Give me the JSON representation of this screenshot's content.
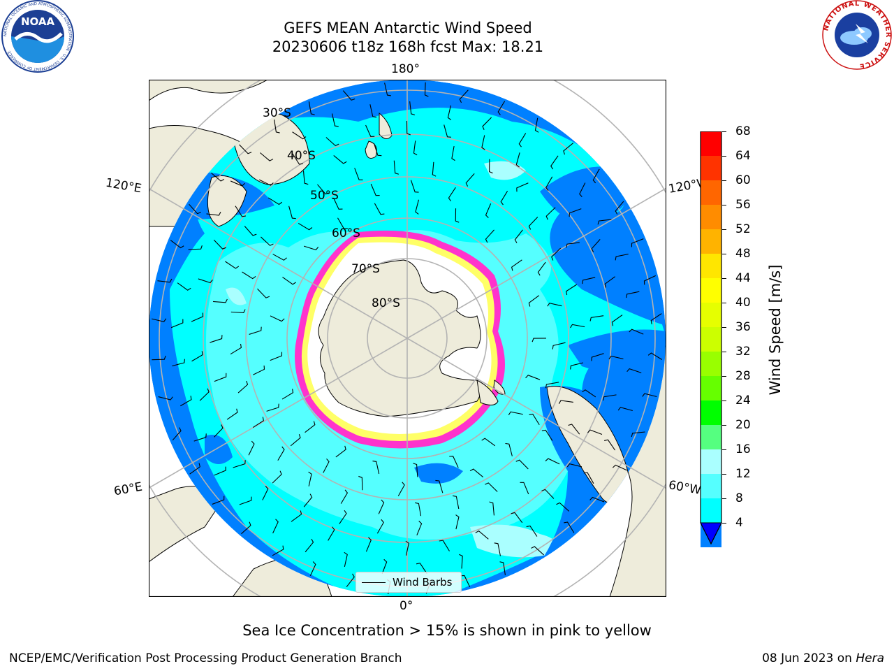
{
  "title": {
    "line1": "GEFS MEAN Antarctic Wind Speed",
    "line2": "20230606 t18z 168h fcst   Max: 18.21"
  },
  "logos": {
    "noaa_text": "NOAA",
    "noaa_ring_text": "NATIONAL OCEANIC AND ATMOSPHERIC ADMINISTRATION · U.S. DEPARTMENT OF COMMERCE",
    "nws_ring_text": "NATIONAL WEATHER SERVICE"
  },
  "map": {
    "projection": "south polar stereographic",
    "longitude_labels": {
      "top": "180°",
      "bottom": "0°",
      "left_upper": "120°E",
      "left_lower": "60°E",
      "right_upper": "120°W",
      "right_lower": "60°W"
    },
    "latitude_labels": [
      "30°S",
      "40°S",
      "50°S",
      "60°S",
      "70°S",
      "80°S"
    ],
    "colors": {
      "land": "#eeecdb",
      "wind_4_8": "#0080ff",
      "wind_8_12": "#00ffff",
      "wind_12_16": "#55ffff",
      "wind_16_20": "#aaffff",
      "sea_ice_edge": "#ff33cc",
      "sea_ice_inner": "#ffff66",
      "ice_shelf": "#ffffff",
      "gridline": "#b3b3b3"
    },
    "legend": {
      "label": "Wind Barbs"
    }
  },
  "colorbar": {
    "label": "Wind Speed [m/s]",
    "ticks": [
      "68",
      "64",
      "60",
      "56",
      "52",
      "48",
      "44",
      "40",
      "36",
      "32",
      "28",
      "24",
      "20",
      "16",
      "12",
      "8",
      "4"
    ],
    "colors": [
      "#ff0000",
      "#ff3300",
      "#ff6600",
      "#ff8c00",
      "#ffb300",
      "#ffe600",
      "#ffff00",
      "#e6ff00",
      "#ccff00",
      "#99ff00",
      "#66ff00",
      "#00ff00",
      "#55ff80",
      "#aaffff",
      "#55ffff",
      "#00ffff",
      "#0080ff"
    ],
    "under_color": "#0000ff"
  },
  "caption": "Sea Ice Concentration > 15% is shown in pink to yellow",
  "footer": {
    "left": "NCEP/EMC/Verification Post Processing Product Generation Branch",
    "right_date": "08 Jun 2023 on ",
    "right_host": "Hera"
  }
}
